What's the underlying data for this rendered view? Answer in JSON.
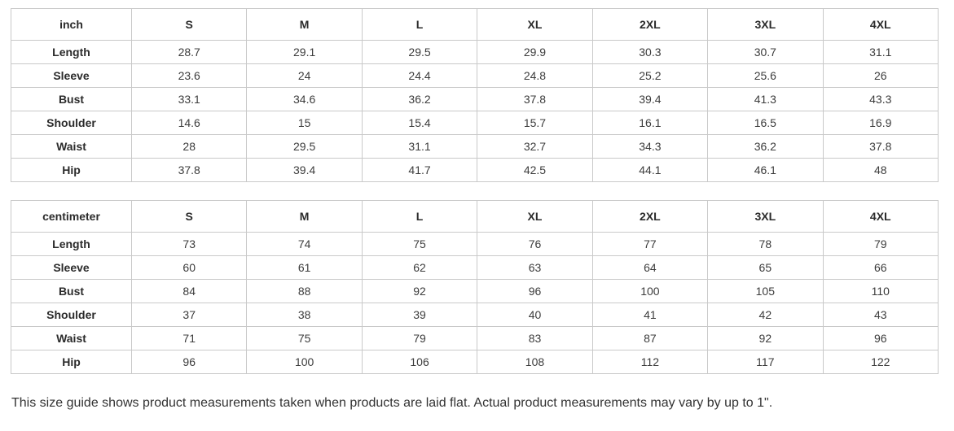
{
  "tables": [
    {
      "unit_label": "inch",
      "columns": [
        "S",
        "M",
        "L",
        "XL",
        "2XL",
        "3XL",
        "4XL"
      ],
      "rows": [
        {
          "label": "Length",
          "values": [
            "28.7",
            "29.1",
            "29.5",
            "29.9",
            "30.3",
            "30.7",
            "31.1"
          ]
        },
        {
          "label": "Sleeve",
          "values": [
            "23.6",
            "24",
            "24.4",
            "24.8",
            "25.2",
            "25.6",
            "26"
          ]
        },
        {
          "label": "Bust",
          "values": [
            "33.1",
            "34.6",
            "36.2",
            "37.8",
            "39.4",
            "41.3",
            "43.3"
          ]
        },
        {
          "label": "Shoulder",
          "values": [
            "14.6",
            "15",
            "15.4",
            "15.7",
            "16.1",
            "16.5",
            "16.9"
          ]
        },
        {
          "label": "Waist",
          "values": [
            "28",
            "29.5",
            "31.1",
            "32.7",
            "34.3",
            "36.2",
            "37.8"
          ]
        },
        {
          "label": "Hip",
          "values": [
            "37.8",
            "39.4",
            "41.7",
            "42.5",
            "44.1",
            "46.1",
            "48"
          ]
        }
      ]
    },
    {
      "unit_label": "centimeter",
      "columns": [
        "S",
        "M",
        "L",
        "XL",
        "2XL",
        "3XL",
        "4XL"
      ],
      "rows": [
        {
          "label": "Length",
          "values": [
            "73",
            "74",
            "75",
            "76",
            "77",
            "78",
            "79"
          ]
        },
        {
          "label": "Sleeve",
          "values": [
            "60",
            "61",
            "62",
            "63",
            "64",
            "65",
            "66"
          ]
        },
        {
          "label": "Bust",
          "values": [
            "84",
            "88",
            "92",
            "96",
            "100",
            "105",
            "110"
          ]
        },
        {
          "label": "Shoulder",
          "values": [
            "37",
            "38",
            "39",
            "40",
            "41",
            "42",
            "43"
          ]
        },
        {
          "label": "Waist",
          "values": [
            "71",
            "75",
            "79",
            "83",
            "87",
            "92",
            "96"
          ]
        },
        {
          "label": "Hip",
          "values": [
            "96",
            "100",
            "106",
            "108",
            "112",
            "117",
            "122"
          ]
        }
      ]
    }
  ],
  "footer_note": "This size guide shows product measurements taken when products are laid flat. Actual product measurements may vary by up to 1\".",
  "colors": {
    "text": "#333333",
    "header_text": "#2b2b2b",
    "border": "#c9c9c9",
    "background": "#ffffff"
  }
}
